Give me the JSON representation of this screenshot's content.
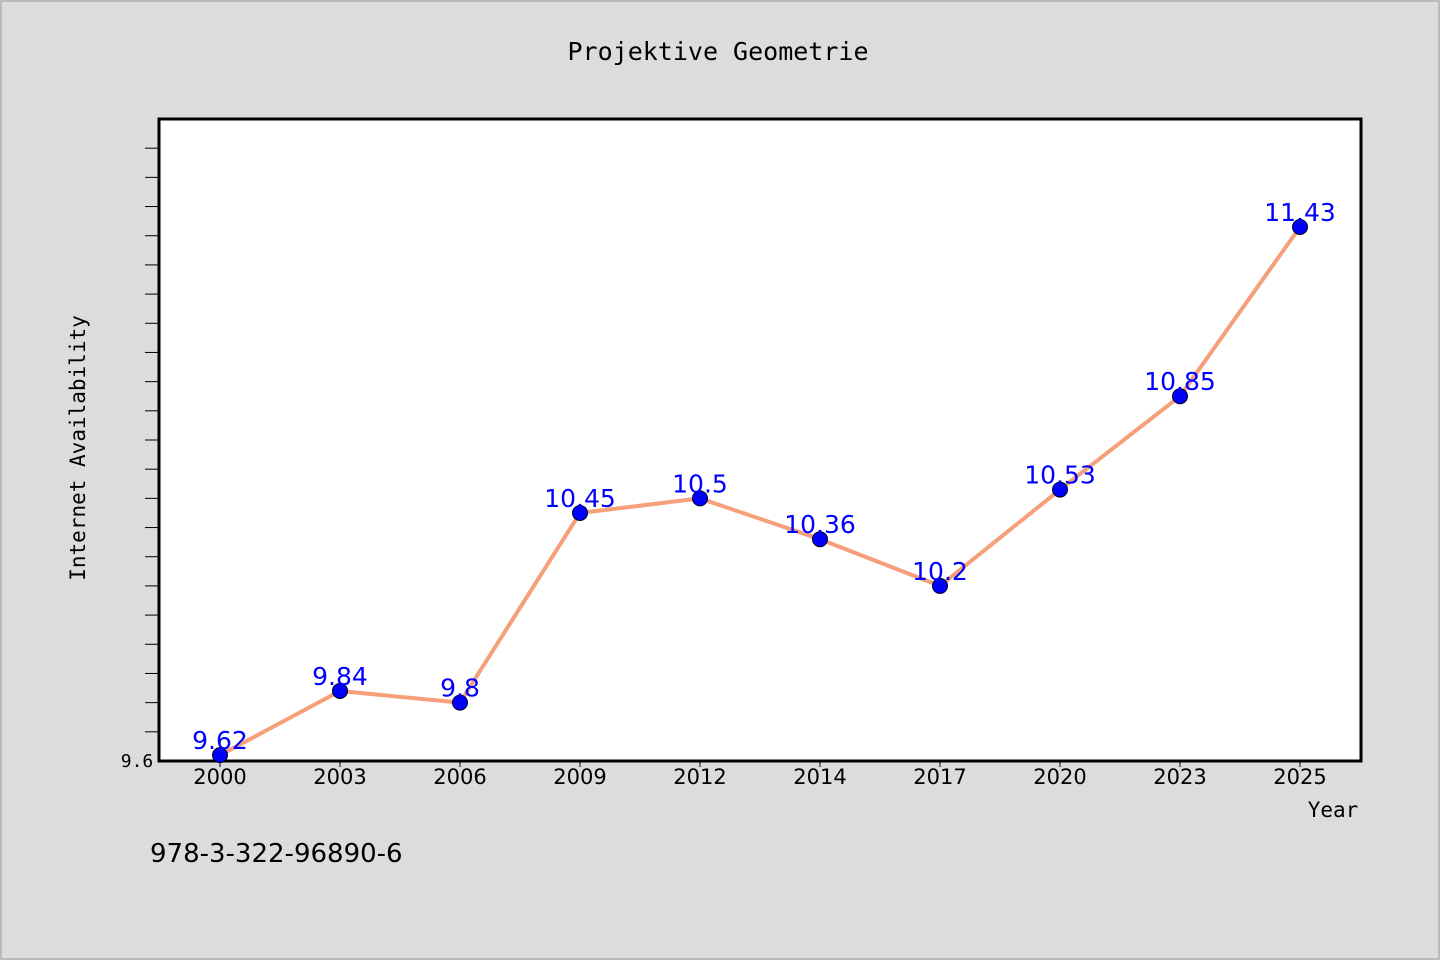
{
  "chart_data": {
    "type": "line",
    "title": "Projektive Geometrie",
    "xlabel": "Year",
    "ylabel": "Internet Availability",
    "ytick_labels": [
      "9.6"
    ],
    "ylim": [
      9.6,
      11.8
    ],
    "grid": false,
    "legend": "none",
    "categories": [
      "2000",
      "2003",
      "2006",
      "2009",
      "2012",
      "2014",
      "2017",
      "2020",
      "2023",
      "2025"
    ],
    "series": [
      {
        "values": [
          9.62,
          9.84,
          9.8,
          10.45,
          10.5,
          10.36,
          10.2,
          10.53,
          10.85,
          11.43
        ],
        "data_labels": [
          "9.62",
          "9.84",
          "9.8",
          "10.45",
          "10.5",
          "10.36",
          "10.2",
          "10.53",
          "10.85",
          "11.43"
        ],
        "line_color": "#f5a07a",
        "marker_color": "#0000ff",
        "label_color": "#0000ff"
      }
    ]
  },
  "footer": {
    "isbn": "978-3-322-96890-6"
  },
  "colors": {
    "background": "#dcdcdc",
    "plot_background": "#ffffff",
    "axis": "#000000"
  }
}
